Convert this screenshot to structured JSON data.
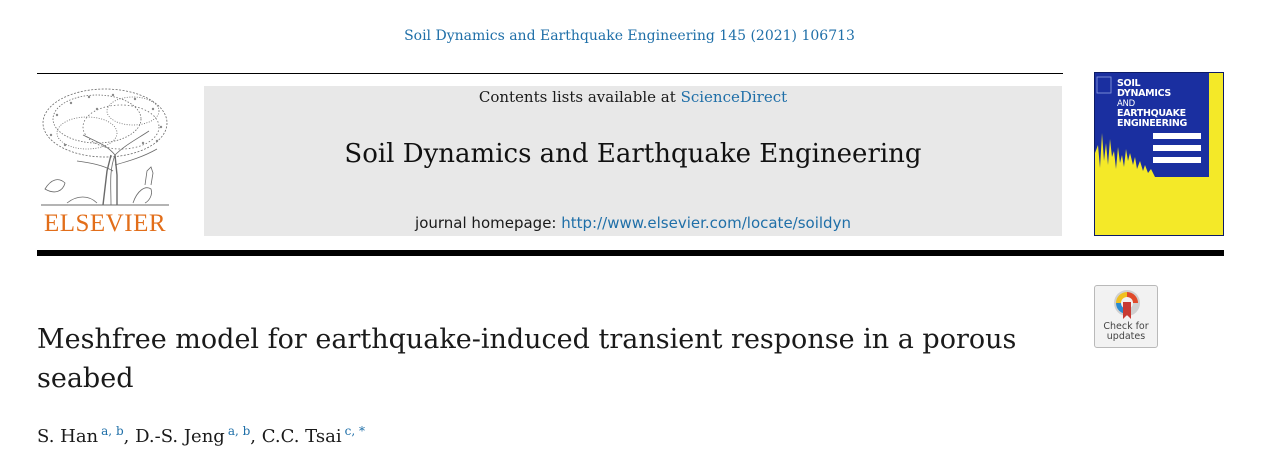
{
  "header": {
    "citation": "Soil Dynamics and Earthquake Engineering 145 (2021) 106713"
  },
  "publisher": {
    "logo_text": "ELSEVIER"
  },
  "banner": {
    "contents_prefix": "Contents lists available at",
    "contents_link": "ScienceDirect",
    "journal_title": "Soil Dynamics and Earthquake Engineering",
    "homepage_label": "journal homepage:",
    "homepage_url": "http://www.elsevier.com/locate/soildyn"
  },
  "cover": {
    "title_line1": "SOIL",
    "title_line2": "DYNAMICS",
    "title_line3": "AND",
    "title_line4": "EARTHQUAKE",
    "title_line5": "ENGINEERING"
  },
  "check_updates": {
    "line1": "Check for",
    "line2": "updates"
  },
  "article": {
    "title": "Meshfree model for earthquake-induced transient response in a porous seabed",
    "authors": [
      {
        "name": "S. Han",
        "affil": "a, b",
        "sep": ","
      },
      {
        "name": "D.-S. Jeng",
        "affil": "a, b",
        "sep": ","
      },
      {
        "name": "C.C. Tsai",
        "affil": "c, *",
        "sep": ""
      }
    ]
  },
  "colors": {
    "link": "#1f6fa8",
    "elsevier_orange": "#e26e1a",
    "banner_gray": "#e8e8e8",
    "cover_blue": "#1a2fa0",
    "cover_yellow": "#f4e928"
  }
}
